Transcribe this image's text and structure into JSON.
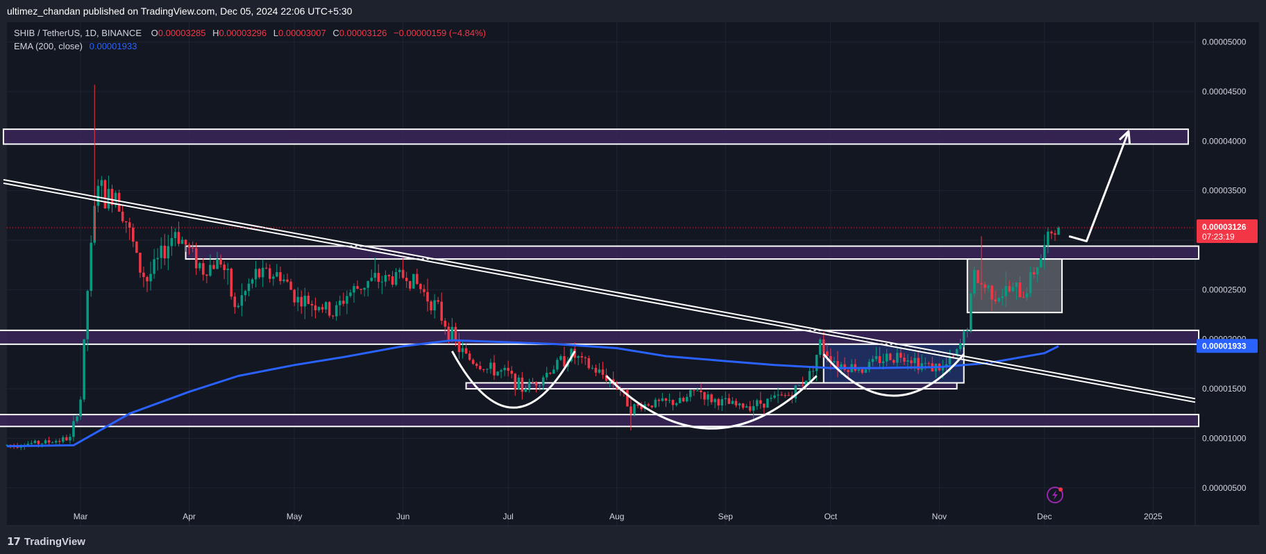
{
  "header": {
    "publisher_line": "ultimez_chandan published on TradingView.com, Dec 05, 2024 22:06 UTC+5:30"
  },
  "legend": {
    "symbol": "SHIB / TetherUS, 1D, BINANCE",
    "open_label": "O",
    "open": "0.00003285",
    "high_label": "H",
    "high": "0.00003296",
    "low_label": "L",
    "low": "0.00003007",
    "close_label": "C",
    "close": "0.00003126",
    "change": "−0.00000159 (−4.84%)",
    "ema_label": "EMA (200, close)",
    "ema_value": "0.00001933"
  },
  "footer": {
    "brand": "TradingView",
    "logo_glyph": "17"
  },
  "colors": {
    "background": "#131722",
    "frame": "#1e222d",
    "up": "#089981",
    "down": "#f23645",
    "ema": "#2962ff",
    "zone_fill": "#3b2559",
    "zone_stroke": "#ffffff",
    "price_badge": "#f23645",
    "ema_badge": "#2962ff"
  },
  "chart_data": {
    "type": "candlestick",
    "title": "SHIB / TetherUS, 1D, BINANCE",
    "y_ticks": [
      "0.00005000",
      "0.00004500",
      "0.00004000",
      "0.00003500",
      "0.00003000",
      "0.00002500",
      "0.00002000",
      "0.00001500",
      "0.00001000",
      "0.00000500"
    ],
    "y_tick_values": [
      5e-05,
      4.5e-05,
      4e-05,
      3.5e-05,
      3e-05,
      2.5e-05,
      2e-05,
      1.5e-05,
      1e-05,
      5e-06
    ],
    "ylim": [
      1.2e-06,
      5.2e-05
    ],
    "x_ticks": [
      "Mar",
      "Apr",
      "May",
      "Jun",
      "Jul",
      "Aug",
      "Sep",
      "Oct",
      "Nov",
      "Dec",
      "2025"
    ],
    "x_tick_dates": [
      "2024-03-01",
      "2024-04-01",
      "2024-05-01",
      "2024-06-01",
      "2024-07-01",
      "2024-08-01",
      "2024-09-01",
      "2024-10-01",
      "2024-11-01",
      "2024-12-01",
      "2025-01-01"
    ],
    "xlim": [
      "2024-02-09",
      "2025-01-13"
    ],
    "last_price": {
      "value": 3.126e-05,
      "label": "0.00003126",
      "countdown": "07:23:19"
    },
    "ema_badge": {
      "value": 1.933e-05,
      "label": "0.00001933"
    },
    "price_keypoints": [
      [
        "2024-02-09",
        9.3e-06
      ],
      [
        "2024-02-20",
        9.6e-06
      ],
      [
        "2024-02-27",
        1e-05
      ],
      [
        "2024-03-01",
        1.4e-05
      ],
      [
        "2024-03-03",
        2.5e-05
      ],
      [
        "2024-03-05",
        3.3e-05
      ],
      [
        "2024-03-06",
        3.6e-05
      ],
      [
        "2024-03-08",
        3.4e-05
      ],
      [
        "2024-03-11",
        3.5e-05
      ],
      [
        "2024-03-14",
        3.2e-05
      ],
      [
        "2024-03-18",
        2.7e-05
      ],
      [
        "2024-03-20",
        2.6e-05
      ],
      [
        "2024-03-25",
        2.9e-05
      ],
      [
        "2024-03-28",
        3.1e-05
      ],
      [
        "2024-04-01",
        2.9e-05
      ],
      [
        "2024-04-05",
        2.7e-05
      ],
      [
        "2024-04-10",
        2.8e-05
      ],
      [
        "2024-04-12",
        2.6e-05
      ],
      [
        "2024-04-14",
        2.3e-05
      ],
      [
        "2024-04-20",
        2.65e-05
      ],
      [
        "2024-04-27",
        2.65e-05
      ],
      [
        "2024-05-02",
        2.4e-05
      ],
      [
        "2024-05-08",
        2.35e-05
      ],
      [
        "2024-05-12",
        2.25e-05
      ],
      [
        "2024-05-16",
        2.45e-05
      ],
      [
        "2024-05-22",
        2.58e-05
      ],
      [
        "2024-05-29",
        2.62e-05
      ],
      [
        "2024-06-02",
        2.65e-05
      ],
      [
        "2024-06-05",
        2.55e-05
      ],
      [
        "2024-06-10",
        2.35e-05
      ],
      [
        "2024-06-14",
        2.1e-05
      ],
      [
        "2024-06-17",
        1.9e-05
      ],
      [
        "2024-06-20",
        1.8e-05
      ],
      [
        "2024-06-25",
        1.7e-05
      ],
      [
        "2024-07-01",
        1.65e-05
      ],
      [
        "2024-07-05",
        1.5e-05
      ],
      [
        "2024-07-10",
        1.6e-05
      ],
      [
        "2024-07-15",
        1.75e-05
      ],
      [
        "2024-07-19",
        1.85e-05
      ],
      [
        "2024-07-24",
        1.72e-05
      ],
      [
        "2024-07-29",
        1.62e-05
      ],
      [
        "2024-08-02",
        1.5e-05
      ],
      [
        "2024-08-05",
        1.3e-05
      ],
      [
        "2024-08-10",
        1.35e-05
      ],
      [
        "2024-08-20",
        1.37e-05
      ],
      [
        "2024-08-24",
        1.5e-05
      ],
      [
        "2024-08-27",
        1.4e-05
      ],
      [
        "2024-09-05",
        1.32e-05
      ],
      [
        "2024-09-10",
        1.35e-05
      ],
      [
        "2024-09-20",
        1.45e-05
      ],
      [
        "2024-09-25",
        1.65e-05
      ],
      [
        "2024-09-28",
        1.95e-05
      ],
      [
        "2024-10-03",
        1.75e-05
      ],
      [
        "2024-10-10",
        1.7e-05
      ],
      [
        "2024-10-15",
        1.8e-05
      ],
      [
        "2024-10-22",
        1.85e-05
      ],
      [
        "2024-10-27",
        1.75e-05
      ],
      [
        "2024-11-02",
        1.7e-05
      ],
      [
        "2024-11-06",
        1.85e-05
      ],
      [
        "2024-11-09",
        2.15e-05
      ],
      [
        "2024-11-11",
        2.65e-05
      ],
      [
        "2024-11-13",
        2.55e-05
      ],
      [
        "2024-11-18",
        2.45e-05
      ],
      [
        "2024-11-22",
        2.5e-05
      ],
      [
        "2024-11-25",
        2.45e-05
      ],
      [
        "2024-11-28",
        2.7e-05
      ],
      [
        "2024-12-01",
        2.9e-05
      ],
      [
        "2024-12-03",
        3.1e-05
      ],
      [
        "2024-12-05",
        3.13e-05
      ]
    ],
    "ema_keypoints": [
      [
        "2024-02-09",
        9.2e-06
      ],
      [
        "2024-02-28",
        9.3e-06
      ],
      [
        "2024-03-05",
        1.05e-05
      ],
      [
        "2024-03-15",
        1.25e-05
      ],
      [
        "2024-04-01",
        1.47e-05
      ],
      [
        "2024-04-15",
        1.63e-05
      ],
      [
        "2024-05-01",
        1.74e-05
      ],
      [
        "2024-05-15",
        1.82e-05
      ],
      [
        "2024-06-01",
        1.93e-05
      ],
      [
        "2024-06-15",
        1.99e-05
      ],
      [
        "2024-07-01",
        1.97e-05
      ],
      [
        "2024-07-15",
        1.95e-05
      ],
      [
        "2024-08-01",
        1.91e-05
      ],
      [
        "2024-08-15",
        1.83e-05
      ],
      [
        "2024-09-01",
        1.78e-05
      ],
      [
        "2024-09-15",
        1.74e-05
      ],
      [
        "2024-10-01",
        1.71e-05
      ],
      [
        "2024-10-15",
        1.71e-05
      ],
      [
        "2024-11-01",
        1.72e-05
      ],
      [
        "2024-11-15",
        1.76e-05
      ],
      [
        "2024-12-01",
        1.86e-05
      ],
      [
        "2024-12-05",
        1.93e-05
      ]
    ],
    "trendline": {
      "start": [
        "2024-02-08",
        3.61e-05
      ],
      "end": [
        "2025-01-13",
        1.4e-05
      ]
    },
    "zones": [
      {
        "name": "target-zone",
        "from": "2024-02-08",
        "to": "2025-01-11",
        "top": 4.12e-05,
        "bottom": 3.97e-05
      },
      {
        "name": "resistance-zone",
        "from": "2024-03-31",
        "to": "2025-01-14",
        "top": 2.94e-05,
        "bottom": 2.81e-05
      },
      {
        "name": "support-zone-upper",
        "from": "2024-02-04",
        "to": "2025-01-14",
        "top": 2.09e-05,
        "bottom": 1.95e-05
      },
      {
        "name": "support-zone-lower",
        "from": "2024-01-31",
        "to": "2025-01-14",
        "top": 1.24e-05,
        "bottom": 1.12e-05
      },
      {
        "name": "neckline-zone",
        "from": "2024-06-19",
        "to": "2024-11-06",
        "top": 1.56e-05,
        "bottom": 1.5e-05
      }
    ],
    "boxes": [
      {
        "name": "consolidation-box",
        "from": "2024-11-09",
        "to": "2024-12-06",
        "top": 2.81e-05,
        "bottom": 2.27e-05
      },
      {
        "name": "cup-box",
        "from": "2024-09-29",
        "to": "2024-11-08",
        "top": 1.95e-05,
        "bottom": 1.56e-05
      }
    ],
    "arcs": [
      {
        "name": "arc-left",
        "from": "2024-06-15",
        "to": "2024-07-20",
        "top": 1.88e-05,
        "bottom": 1.31e-05
      },
      {
        "name": "arc-middle",
        "from": "2024-07-29",
        "to": "2024-09-27",
        "top": 1.63e-05,
        "bottom": 1.1e-05
      },
      {
        "name": "arc-right",
        "from": "2024-09-29",
        "to": "2024-11-08",
        "top": 1.85e-05,
        "bottom": 1.43e-05
      }
    ],
    "projection": [
      [
        "2024-12-08",
        3.04e-05
      ],
      [
        "2024-12-13",
        2.99e-05
      ],
      [
        "2024-12-25",
        4.1e-05
      ]
    ]
  }
}
